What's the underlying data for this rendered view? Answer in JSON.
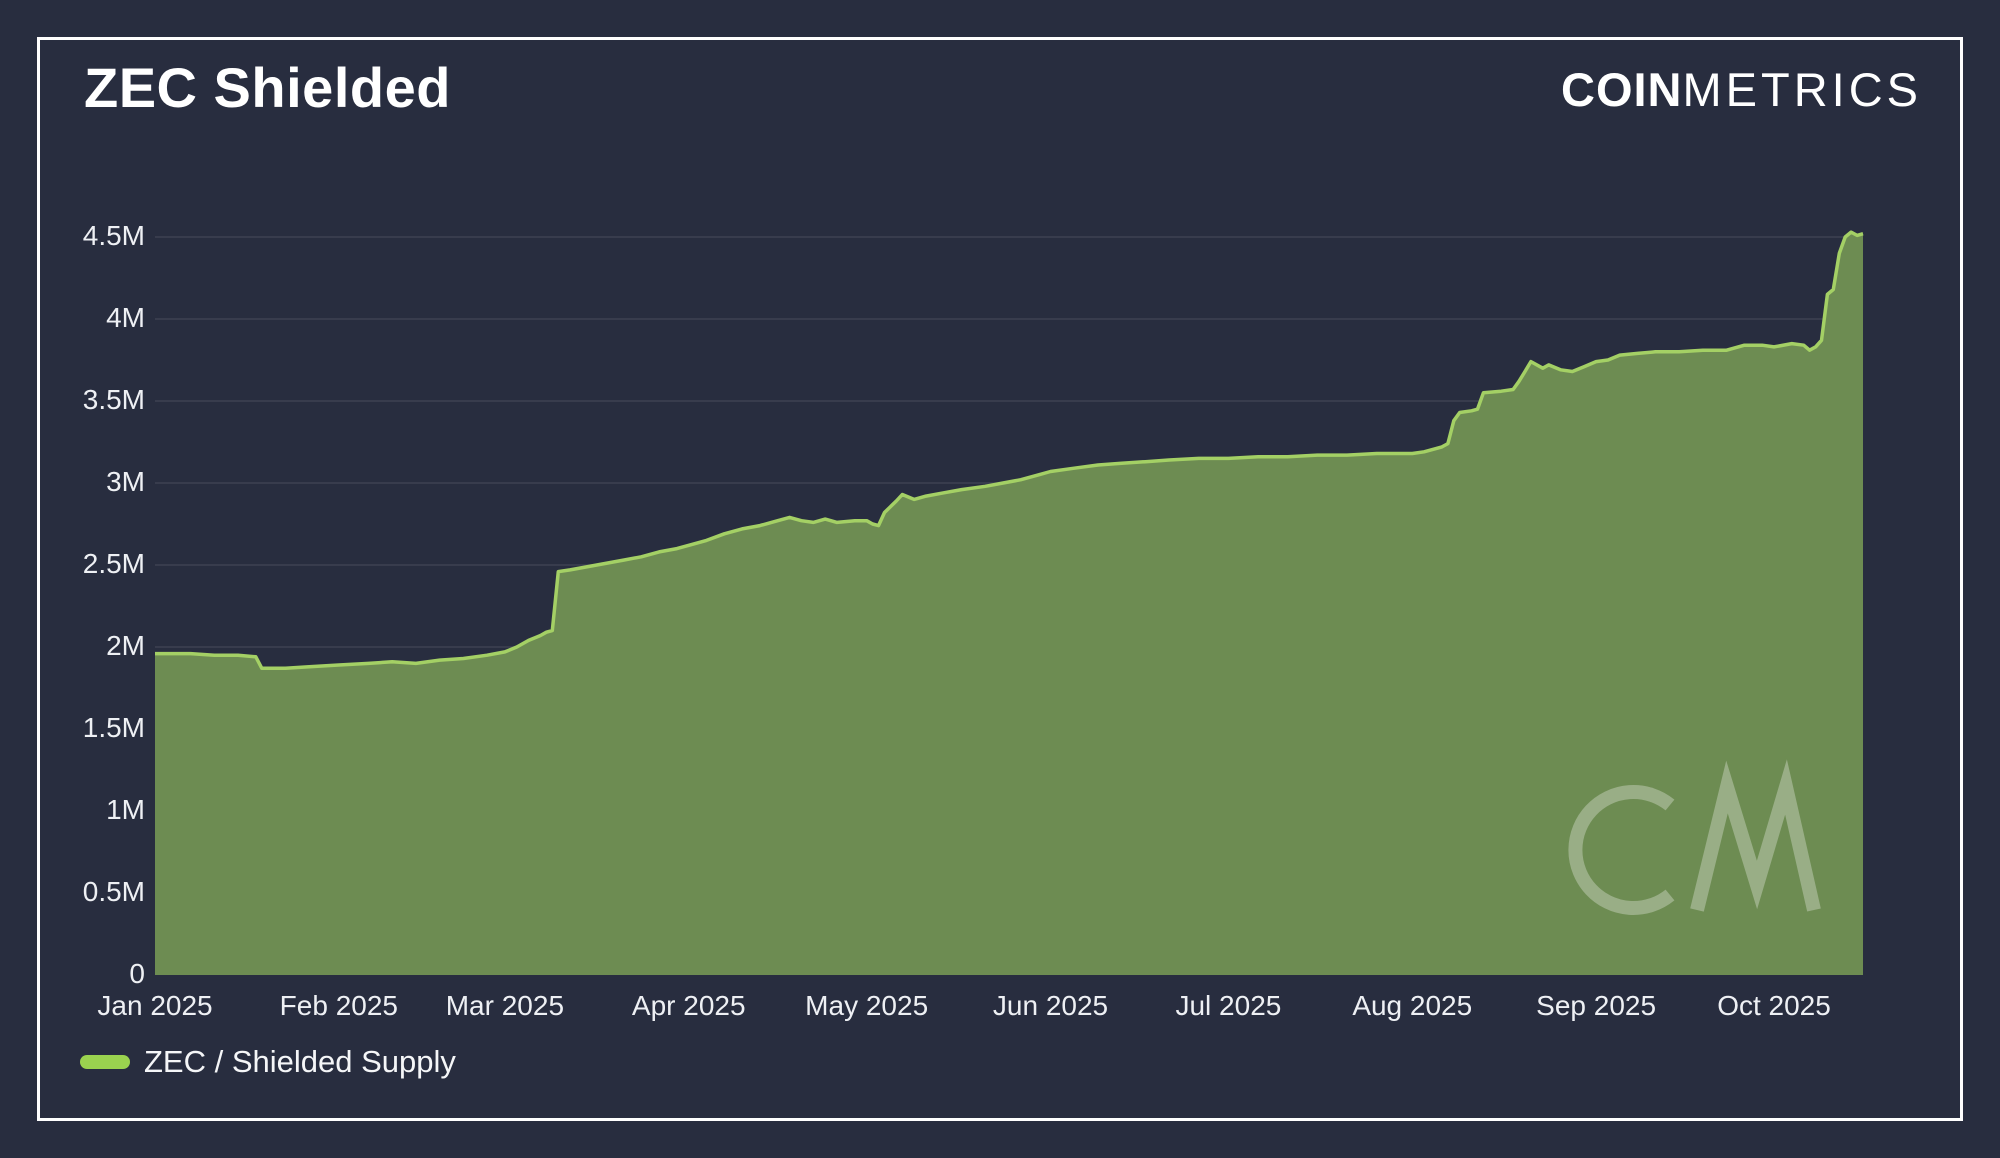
{
  "header": {
    "title": "ZEC Shielded",
    "logo_bold": "COIN",
    "logo_light": "METRICS"
  },
  "legend": {
    "label": "ZEC / Shielded Supply",
    "swatch_color": "#9ad24f"
  },
  "watermark": {
    "icon": "coinmetrics-cm-monogram"
  },
  "colors": {
    "background": "#282d3f",
    "panel_border": "#ffffff",
    "area_fill": "#6d8c52",
    "line": "#a4d065",
    "grid": "#3b4254",
    "text": "#eef0f4"
  },
  "chart_data": {
    "type": "area",
    "title": "ZEC Shielded",
    "unit": "millions of ZEC",
    "xlabel": "",
    "ylabel": "",
    "ylim": [
      0,
      4.5
    ],
    "grid": "horizontal",
    "legend_position": "bottom-left",
    "y_ticks": [
      {
        "value": 0,
        "label": "0"
      },
      {
        "value": 0.5,
        "label": "0.5M"
      },
      {
        "value": 1,
        "label": "1M"
      },
      {
        "value": 1.5,
        "label": "1.5M"
      },
      {
        "value": 2,
        "label": "2M"
      },
      {
        "value": 2.5,
        "label": "2.5M"
      },
      {
        "value": 3,
        "label": "3M"
      },
      {
        "value": 3.5,
        "label": "3.5M"
      },
      {
        "value": 4,
        "label": "4M"
      },
      {
        "value": 4.5,
        "label": "4.5M"
      }
    ],
    "x_ticks": [
      {
        "date": "2025-01-01",
        "label": "Jan 2025"
      },
      {
        "date": "2025-02-01",
        "label": "Feb 2025"
      },
      {
        "date": "2025-03-01",
        "label": "Mar 2025"
      },
      {
        "date": "2025-04-01",
        "label": "Apr 2025"
      },
      {
        "date": "2025-05-01",
        "label": "May 2025"
      },
      {
        "date": "2025-06-01",
        "label": "Jun 2025"
      },
      {
        "date": "2025-07-01",
        "label": "Jul 2025"
      },
      {
        "date": "2025-08-01",
        "label": "Aug 2025"
      },
      {
        "date": "2025-09-01",
        "label": "Sep 2025"
      },
      {
        "date": "2025-10-01",
        "label": "Oct 2025"
      }
    ],
    "series": [
      {
        "name": "ZEC / Shielded Supply",
        "points": [
          [
            "2025-01-01",
            1.96
          ],
          [
            "2025-01-07",
            1.96
          ],
          [
            "2025-01-11",
            1.95
          ],
          [
            "2025-01-15",
            1.95
          ],
          [
            "2025-01-18",
            1.94
          ],
          [
            "2025-01-19",
            1.87
          ],
          [
            "2025-01-23",
            1.87
          ],
          [
            "2025-01-27",
            1.88
          ],
          [
            "2025-02-01",
            1.89
          ],
          [
            "2025-02-06",
            1.9
          ],
          [
            "2025-02-10",
            1.91
          ],
          [
            "2025-02-14",
            1.9
          ],
          [
            "2025-02-18",
            1.92
          ],
          [
            "2025-02-22",
            1.93
          ],
          [
            "2025-02-26",
            1.95
          ],
          [
            "2025-03-01",
            1.97
          ],
          [
            "2025-03-03",
            2.0
          ],
          [
            "2025-03-05",
            2.04
          ],
          [
            "2025-03-07",
            2.07
          ],
          [
            "2025-03-08",
            2.09
          ],
          [
            "2025-03-09",
            2.1
          ],
          [
            "2025-03-10",
            2.46
          ],
          [
            "2025-03-12",
            2.47
          ],
          [
            "2025-03-15",
            2.49
          ],
          [
            "2025-03-18",
            2.51
          ],
          [
            "2025-03-21",
            2.53
          ],
          [
            "2025-03-24",
            2.55
          ],
          [
            "2025-03-27",
            2.58
          ],
          [
            "2025-03-30",
            2.6
          ],
          [
            "2025-04-01",
            2.62
          ],
          [
            "2025-04-04",
            2.65
          ],
          [
            "2025-04-07",
            2.69
          ],
          [
            "2025-04-10",
            2.72
          ],
          [
            "2025-04-13",
            2.74
          ],
          [
            "2025-04-16",
            2.77
          ],
          [
            "2025-04-18",
            2.79
          ],
          [
            "2025-04-20",
            2.77
          ],
          [
            "2025-04-22",
            2.76
          ],
          [
            "2025-04-24",
            2.78
          ],
          [
            "2025-04-26",
            2.76
          ],
          [
            "2025-04-29",
            2.77
          ],
          [
            "2025-05-01",
            2.77
          ],
          [
            "2025-05-02",
            2.75
          ],
          [
            "2025-05-03",
            2.74
          ],
          [
            "2025-05-04",
            2.82
          ],
          [
            "2025-05-06",
            2.89
          ],
          [
            "2025-05-07",
            2.93
          ],
          [
            "2025-05-09",
            2.9
          ],
          [
            "2025-05-11",
            2.92
          ],
          [
            "2025-05-14",
            2.94
          ],
          [
            "2025-05-17",
            2.96
          ],
          [
            "2025-05-21",
            2.98
          ],
          [
            "2025-05-24",
            3.0
          ],
          [
            "2025-05-27",
            3.02
          ],
          [
            "2025-05-30",
            3.05
          ],
          [
            "2025-06-01",
            3.07
          ],
          [
            "2025-06-05",
            3.09
          ],
          [
            "2025-06-09",
            3.11
          ],
          [
            "2025-06-13",
            3.12
          ],
          [
            "2025-06-17",
            3.13
          ],
          [
            "2025-06-21",
            3.14
          ],
          [
            "2025-06-26",
            3.15
          ],
          [
            "2025-07-01",
            3.15
          ],
          [
            "2025-07-06",
            3.16
          ],
          [
            "2025-07-11",
            3.16
          ],
          [
            "2025-07-16",
            3.17
          ],
          [
            "2025-07-21",
            3.17
          ],
          [
            "2025-07-26",
            3.18
          ],
          [
            "2025-08-01",
            3.18
          ],
          [
            "2025-08-03",
            3.19
          ],
          [
            "2025-08-05",
            3.21
          ],
          [
            "2025-08-06",
            3.22
          ],
          [
            "2025-08-07",
            3.24
          ],
          [
            "2025-08-08",
            3.38
          ],
          [
            "2025-08-09",
            3.43
          ],
          [
            "2025-08-11",
            3.44
          ],
          [
            "2025-08-12",
            3.45
          ],
          [
            "2025-08-13",
            3.55
          ],
          [
            "2025-08-16",
            3.56
          ],
          [
            "2025-08-18",
            3.57
          ],
          [
            "2025-08-19",
            3.62
          ],
          [
            "2025-08-20",
            3.68
          ],
          [
            "2025-08-21",
            3.74
          ],
          [
            "2025-08-23",
            3.7
          ],
          [
            "2025-08-24",
            3.72
          ],
          [
            "2025-08-26",
            3.69
          ],
          [
            "2025-08-28",
            3.68
          ],
          [
            "2025-08-30",
            3.71
          ],
          [
            "2025-09-01",
            3.74
          ],
          [
            "2025-09-03",
            3.75
          ],
          [
            "2025-09-05",
            3.78
          ],
          [
            "2025-09-08",
            3.79
          ],
          [
            "2025-09-11",
            3.8
          ],
          [
            "2025-09-15",
            3.8
          ],
          [
            "2025-09-19",
            3.81
          ],
          [
            "2025-09-23",
            3.81
          ],
          [
            "2025-09-26",
            3.84
          ],
          [
            "2025-09-29",
            3.84
          ],
          [
            "2025-10-01",
            3.83
          ],
          [
            "2025-10-04",
            3.85
          ],
          [
            "2025-10-06",
            3.84
          ],
          [
            "2025-10-07",
            3.81
          ],
          [
            "2025-10-08",
            3.83
          ],
          [
            "2025-10-09",
            3.87
          ],
          [
            "2025-10-10",
            4.15
          ],
          [
            "2025-10-11",
            4.18
          ],
          [
            "2025-10-12",
            4.4
          ],
          [
            "2025-10-13",
            4.5
          ],
          [
            "2025-10-14",
            4.53
          ],
          [
            "2025-10-15",
            4.51
          ],
          [
            "2025-10-16",
            4.52
          ]
        ]
      }
    ]
  }
}
